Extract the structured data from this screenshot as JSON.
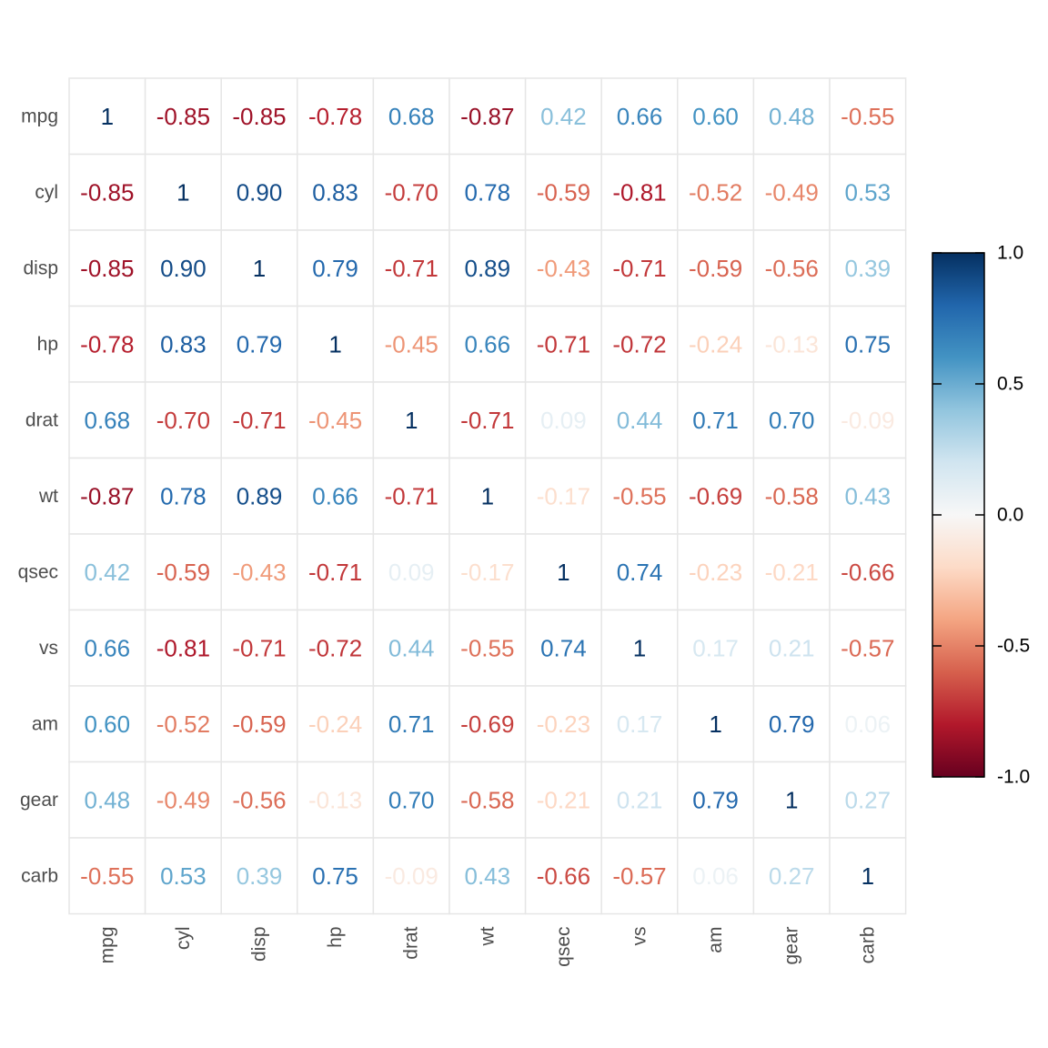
{
  "chart_data": {
    "type": "heatmap",
    "title": "",
    "xlabel": "",
    "ylabel": "",
    "variables": [
      "mpg",
      "cyl",
      "disp",
      "hp",
      "drat",
      "wt",
      "qsec",
      "vs",
      "am",
      "gear",
      "carb"
    ],
    "matrix": [
      [
        1,
        -0.85,
        -0.85,
        -0.78,
        0.68,
        -0.87,
        0.42,
        0.66,
        0.6,
        0.48,
        -0.55
      ],
      [
        -0.85,
        1,
        0.9,
        0.83,
        -0.7,
        0.78,
        -0.59,
        -0.81,
        -0.52,
        -0.49,
        0.53
      ],
      [
        -0.85,
        0.9,
        1,
        0.79,
        -0.71,
        0.89,
        -0.43,
        -0.71,
        -0.59,
        -0.56,
        0.39
      ],
      [
        -0.78,
        0.83,
        0.79,
        1,
        -0.45,
        0.66,
        -0.71,
        -0.72,
        -0.24,
        -0.13,
        0.75
      ],
      [
        0.68,
        -0.7,
        -0.71,
        -0.45,
        1,
        -0.71,
        0.09,
        0.44,
        0.71,
        0.7,
        -0.09
      ],
      [
        -0.87,
        0.78,
        0.89,
        0.66,
        -0.71,
        1,
        -0.17,
        -0.55,
        -0.69,
        -0.58,
        0.43
      ],
      [
        0.42,
        -0.59,
        -0.43,
        -0.71,
        0.09,
        -0.17,
        1,
        0.74,
        -0.23,
        -0.21,
        -0.66
      ],
      [
        0.66,
        -0.81,
        -0.71,
        -0.72,
        0.44,
        -0.55,
        0.74,
        1,
        0.17,
        0.21,
        -0.57
      ],
      [
        0.6,
        -0.52,
        -0.59,
        -0.24,
        0.71,
        -0.69,
        -0.23,
        0.17,
        1,
        0.79,
        0.06
      ],
      [
        0.48,
        -0.49,
        -0.56,
        -0.13,
        0.7,
        -0.58,
        -0.21,
        0.21,
        0.79,
        1,
        0.27
      ],
      [
        -0.55,
        0.53,
        0.39,
        0.75,
        -0.09,
        0.43,
        -0.66,
        -0.57,
        0.06,
        0.27,
        1
      ]
    ],
    "colorbar": {
      "range": [
        -1.0,
        1.0
      ],
      "ticks": [
        1.0,
        0.5,
        0.0,
        -0.5,
        -1.0
      ],
      "tick_labels": [
        "1.0",
        "0.5",
        "0.0",
        "-0.5",
        "-1.0"
      ],
      "colors": [
        "#67001F",
        "#B2182B",
        "#D6604D",
        "#F4A582",
        "#FDDBC7",
        "#F7F7F7",
        "#D1E5F0",
        "#92C5DE",
        "#4393C3",
        "#2166AC",
        "#053061"
      ]
    },
    "grid": true,
    "legend": "right"
  }
}
